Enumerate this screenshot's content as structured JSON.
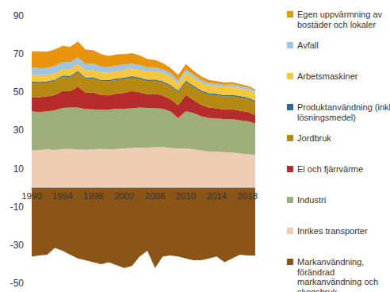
{
  "chart_data": {
    "type": "area",
    "stacked": true,
    "x": [
      1990,
      1991,
      1992,
      1993,
      1994,
      1995,
      1996,
      1997,
      1998,
      1999,
      2000,
      2001,
      2002,
      2003,
      2004,
      2005,
      2006,
      2007,
      2008,
      2009,
      2010,
      2011,
      2012,
      2013,
      2014,
      2015,
      2016,
      2017,
      2018,
      2019
    ],
    "xlim": [
      1990,
      2019
    ],
    "xticks": [
      1990,
      1994,
      1998,
      2002,
      2006,
      2010,
      2014,
      2018
    ],
    "ylim": [
      -50,
      90
    ],
    "yticks": [
      -50,
      -30,
      -10,
      10,
      30,
      50,
      70,
      90
    ],
    "legend": "right",
    "series": [
      {
        "name": "Markanvändning, förändrad markanvändning och skogsbruk",
        "color": "#8b5518",
        "values": [
          -36,
          -35.5,
          -35,
          -31.5,
          -33,
          -35,
          -37,
          -38,
          -39,
          -40,
          -39,
          -40.5,
          -42,
          -41,
          -36,
          -33,
          -42,
          -36,
          -35.5,
          -36,
          -37,
          -38,
          -38,
          -37,
          -36,
          -39,
          -37,
          -35,
          -35.5,
          -35.5
        ]
      },
      {
        "name": "Inrikes transporter",
        "color": "#eecdb4",
        "values": [
          19.5,
          19.8,
          20.2,
          19.8,
          20.3,
          20.3,
          20.0,
          19.9,
          20.1,
          20.3,
          20.1,
          20.3,
          20.6,
          20.8,
          21.0,
          21.0,
          21.2,
          21.4,
          20.9,
          20.5,
          20.6,
          20.1,
          19.6,
          19.0,
          18.9,
          18.6,
          18.4,
          17.9,
          17.6,
          17.2
        ]
      },
      {
        "name": "Industri",
        "color": "#9dae7b",
        "values": [
          20.5,
          19.8,
          19.8,
          20.8,
          21.5,
          21.7,
          22.0,
          21.3,
          21.0,
          20.5,
          20.8,
          21.0,
          20.8,
          20.8,
          21.0,
          20.8,
          20.5,
          20.0,
          19.0,
          16.0,
          19.5,
          19.0,
          17.8,
          17.5,
          17.5,
          17.3,
          17.5,
          17.5,
          17.3,
          16.5
        ]
      },
      {
        "name": "El och fjärrvärme",
        "color": "#b62b2b",
        "values": [
          7.5,
          7.8,
          7.8,
          8.0,
          8.8,
          8.5,
          11.0,
          8.5,
          8.8,
          7.8,
          7.5,
          8.0,
          8.3,
          9.0,
          8.0,
          7.2,
          7.5,
          6.8,
          6.5,
          6.8,
          8.5,
          6.8,
          6.0,
          5.5,
          5.2,
          5.0,
          5.2,
          5.0,
          4.8,
          4.5
        ]
      },
      {
        "name": "Jordbruk",
        "color": "#b68912",
        "values": [
          7.6,
          7.4,
          7.3,
          7.4,
          7.5,
          7.5,
          7.5,
          7.4,
          7.4,
          7.3,
          7.3,
          7.2,
          7.2,
          7.1,
          7.0,
          6.9,
          6.8,
          6.8,
          6.8,
          6.8,
          6.8,
          6.8,
          6.8,
          6.8,
          6.9,
          6.9,
          6.9,
          6.9,
          6.8,
          6.8
        ]
      },
      {
        "name": "Produktanvändning (inkl. lösningsmedel)",
        "color": "#2e6a97",
        "values": [
          0.6,
          0.6,
          0.6,
          0.6,
          0.6,
          0.6,
          0.6,
          0.6,
          0.6,
          0.6,
          0.7,
          0.7,
          0.7,
          0.7,
          0.7,
          0.7,
          0.7,
          0.7,
          0.7,
          0.7,
          0.7,
          0.7,
          0.7,
          0.7,
          0.7,
          0.7,
          0.7,
          0.7,
          0.7,
          0.7
        ]
      },
      {
        "name": "Arbetsmaskiner",
        "color": "#f6c63c",
        "values": [
          3.5,
          3.4,
          3.4,
          3.4,
          3.5,
          3.6,
          3.7,
          3.7,
          3.8,
          3.8,
          3.8,
          3.9,
          4.0,
          4.0,
          4.1,
          4.2,
          4.3,
          4.4,
          4.2,
          3.8,
          4.2,
          4.2,
          4.1,
          4.0,
          4.0,
          4.1,
          4.2,
          4.2,
          4.1,
          4.0
        ]
      },
      {
        "name": "Avfall",
        "color": "#a0c4df",
        "values": [
          3.8,
          3.8,
          3.7,
          3.7,
          3.6,
          3.6,
          3.5,
          3.4,
          3.3,
          3.2,
          3.0,
          2.9,
          2.8,
          2.6,
          2.5,
          2.3,
          2.1,
          2.0,
          1.9,
          1.8,
          1.7,
          1.6,
          1.5,
          1.4,
          1.4,
          1.3,
          1.3,
          1.2,
          1.2,
          1.1
        ]
      },
      {
        "name": "Egen uppvärmning av bostäder och lokaler",
        "color": "#e8940c",
        "values": [
          8.5,
          8.8,
          8.5,
          8.8,
          8.5,
          8.0,
          8.3,
          7.5,
          7.0,
          6.5,
          5.8,
          5.8,
          5.6,
          5.5,
          5.0,
          4.3,
          3.8,
          3.2,
          2.8,
          2.6,
          2.8,
          2.0,
          1.8,
          1.6,
          1.2,
          1.2,
          1.1,
          1.0,
          0.9,
          0.8
        ]
      }
    ]
  }
}
